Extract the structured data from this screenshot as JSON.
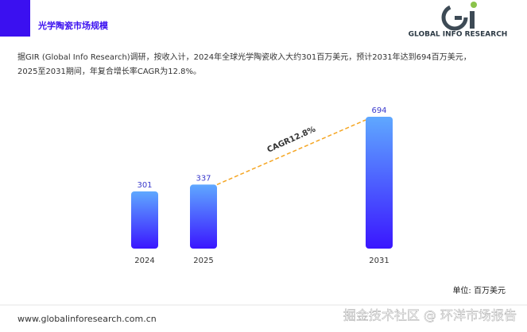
{
  "chart_data": {
    "type": "bar",
    "title": "光学陶瓷市场规模",
    "logo_text": "GLOBAL INFO RESEARCH",
    "description": [
      "据GIR (Global Info Research)调研，按收入计，2024年全球光学陶瓷收入大约301百万美元，预计2031年达到694百万美元，",
      "2025至2031期间，年复合增长率CAGR为12.8%。"
    ],
    "categories": [
      "2024",
      "2025",
      "2031"
    ],
    "values": [
      301,
      337,
      694
    ],
    "annotation": "CAGR12.8%",
    "unit_label": "单位: 百万美元",
    "footer": "www.globalinforesearch.com.cn",
    "watermark": "掘金技术社区 @ 环洋市场报告"
  }
}
